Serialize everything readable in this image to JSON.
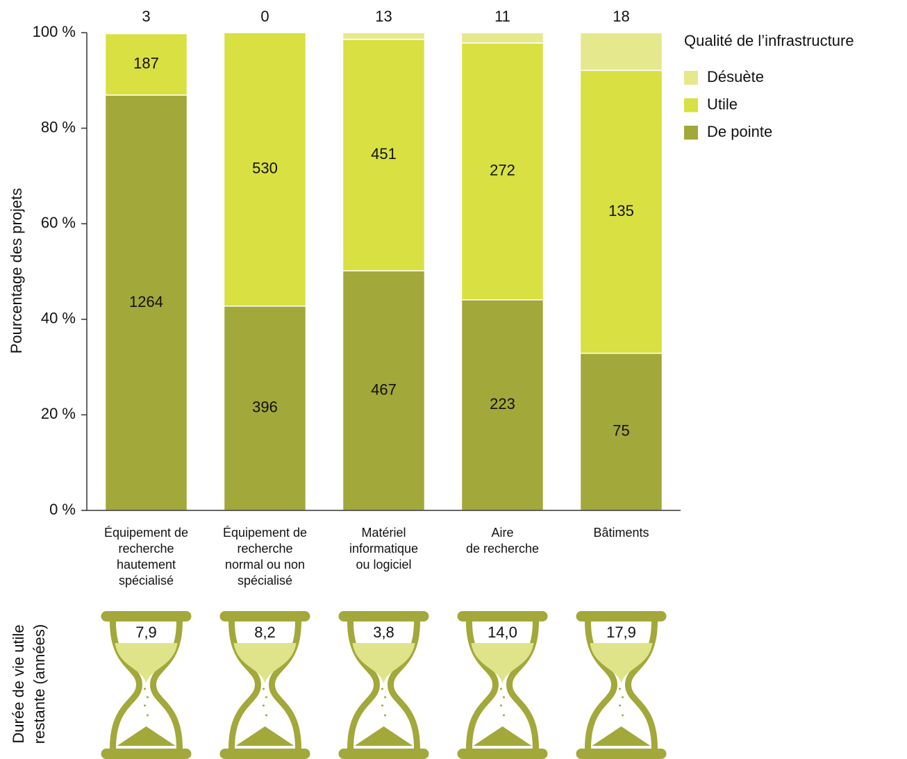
{
  "chart_data": {
    "type": "stacked_percent",
    "ylabel": "Pourcentage des projets",
    "categories": [
      [
        "Équipement de",
        "recherche",
        "hautement",
        "spécialisé"
      ],
      [
        "Équipement de",
        "recherche",
        "normal ou non",
        "spécialisé"
      ],
      [
        "Matériel",
        "informatique",
        "ou logiciel"
      ],
      [
        "Aire",
        "de recherche"
      ],
      [
        "Bâtiments"
      ]
    ],
    "series": [
      {
        "name": "De pointe",
        "color": "#a2a83a",
        "label_color": "#ffffff",
        "values": [
          1264,
          396,
          467,
          223,
          75
        ]
      },
      {
        "name": "Utile",
        "color": "#d8e042",
        "label_color": "#111111",
        "values": [
          187,
          530,
          451,
          272,
          135
        ]
      },
      {
        "name": "Désuète",
        "color": "#e6e88e",
        "label_color": "#111111",
        "values": [
          3,
          0,
          13,
          11,
          18
        ]
      }
    ],
    "legend_title": "Qualité de l’infrastructure",
    "legend": "right",
    "ylim": [
      0,
      100
    ],
    "yticks": [
      {
        "value": 0,
        "label": "0 %"
      },
      {
        "value": 20,
        "label": "20 %"
      },
      {
        "value": 40,
        "label": "40 %"
      },
      {
        "value": 60,
        "label": "60 %"
      },
      {
        "value": 80,
        "label": "80 %"
      },
      {
        "value": 100,
        "label": "100 %"
      }
    ],
    "lifespan": {
      "label": [
        "Durée de vie utile",
        "restante (années)"
      ],
      "values": [
        7.9,
        8.2,
        3.8,
        14.0,
        17.9
      ],
      "value_labels": [
        "7,9",
        "8,2",
        "3,8",
        "14,0",
        "17,9"
      ],
      "color": "#a2a83a"
    }
  }
}
